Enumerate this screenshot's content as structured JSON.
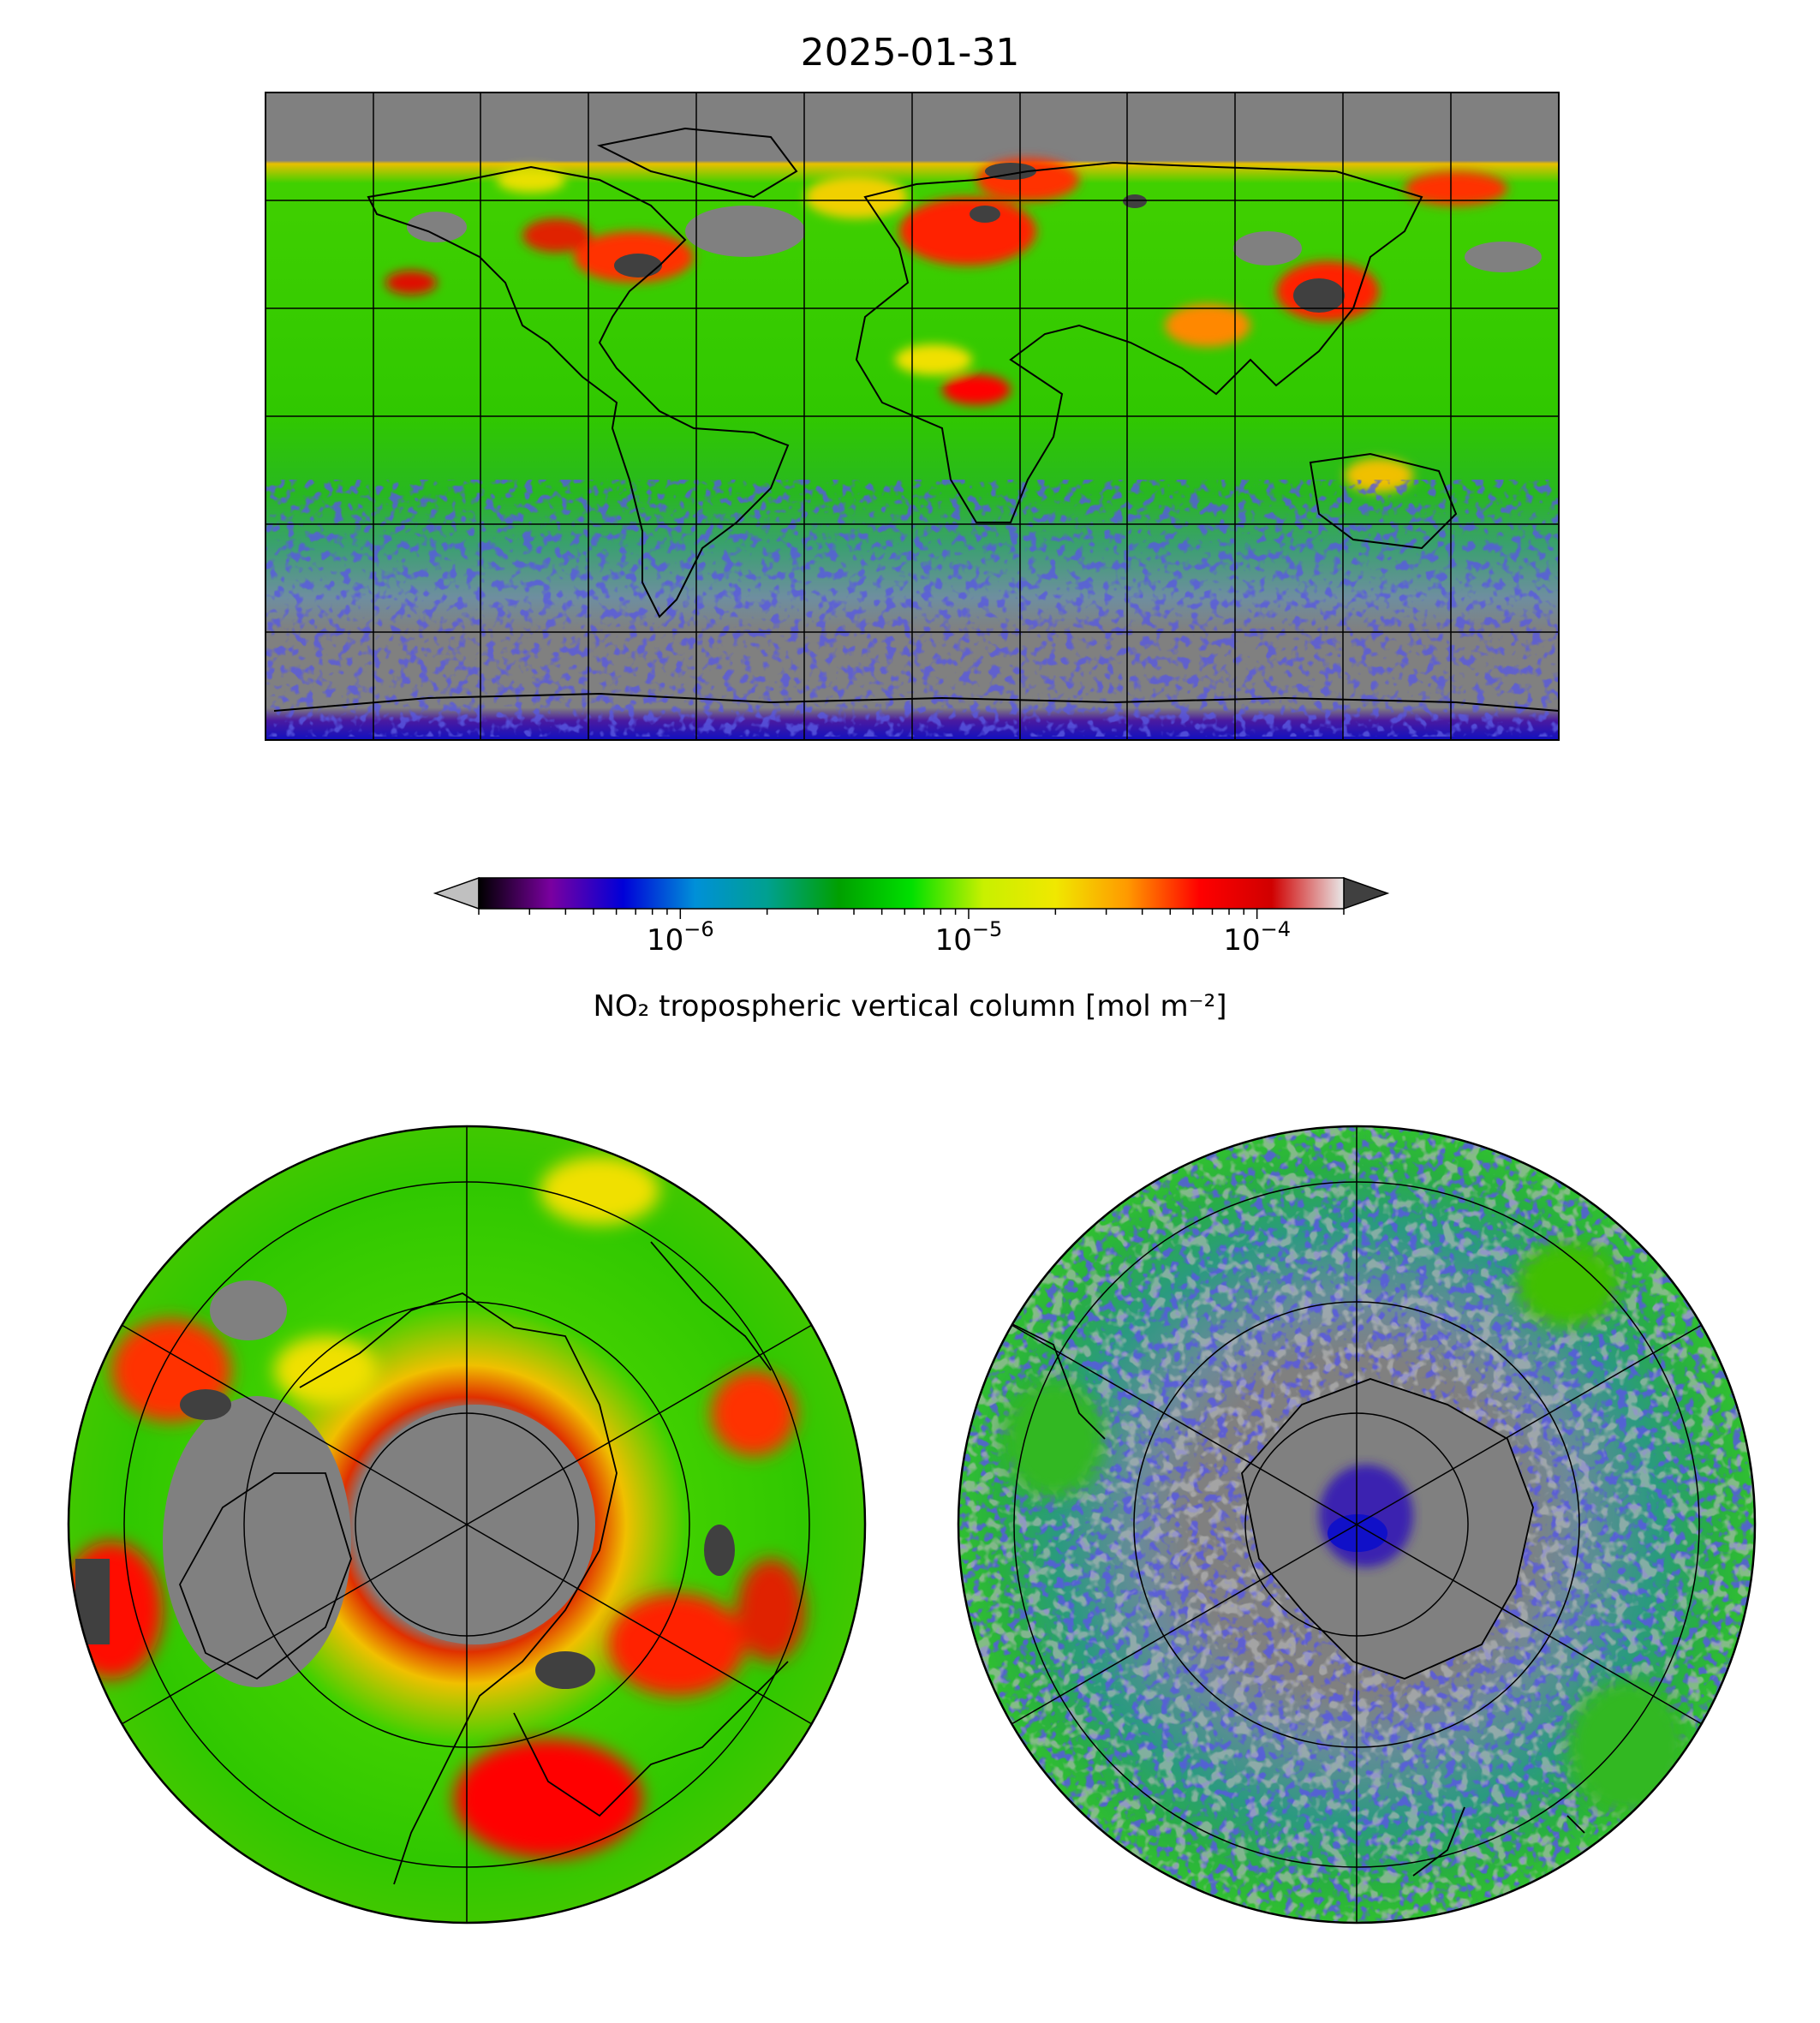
{
  "title": "2025-01-31",
  "colorbar": {
    "label": "NO₂ tropospheric vertical column [mol m⁻²]",
    "scale": "log",
    "ticks": [
      {
        "base": "10",
        "exp": "−6",
        "value": 1e-06
      },
      {
        "base": "10",
        "exp": "−5",
        "value": 1e-05
      },
      {
        "base": "10",
        "exp": "−4",
        "value": 0.0001
      }
    ],
    "range": [
      2e-07,
      0.0002
    ],
    "extend": "both",
    "colors": [
      "#000000",
      "#7a00a0",
      "#0000d8",
      "#0090d8",
      "#00a090",
      "#00a000",
      "#00e000",
      "#c8f000",
      "#f0e800",
      "#ff9900",
      "#ff0000",
      "#d00000",
      "#e8e8e8"
    ],
    "under_color": "#c0c0c0",
    "over_color": "#404040"
  },
  "panels": [
    {
      "name": "global",
      "projection": "PlateCarree",
      "gridlines": true
    },
    {
      "name": "north-polar",
      "projection": "NorthPolarStereo",
      "gridlines": true
    },
    {
      "name": "south-polar",
      "projection": "SouthPolarStereo",
      "gridlines": true
    }
  ],
  "colors": {
    "missing": "#808080",
    "coastline": "#000000",
    "background": "#ffffff"
  }
}
